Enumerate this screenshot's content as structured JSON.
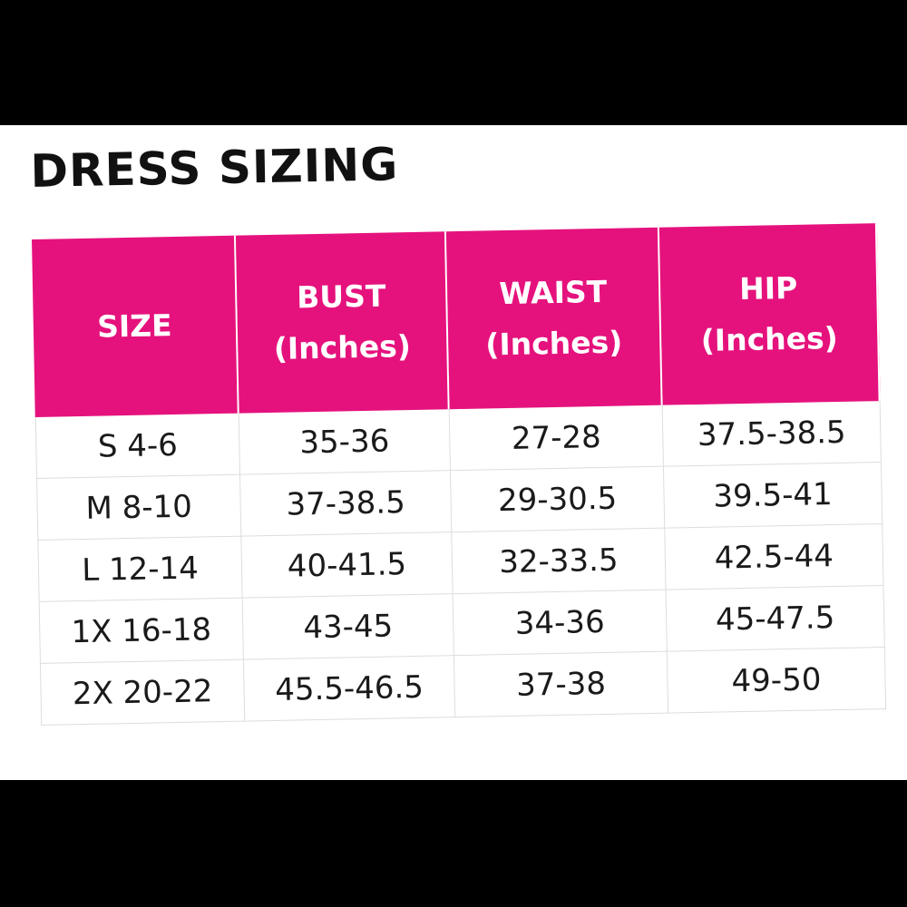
{
  "title": "DRESS SIZING",
  "table": {
    "header": [
      [
        "SIZE"
      ],
      [
        "BUST",
        "(Inches)"
      ],
      [
        "WAIST",
        "(Inches)"
      ],
      [
        "HIP",
        "(Inches)"
      ]
    ],
    "rows": [
      [
        "S 4-6",
        "35-36",
        "27-28",
        "37.5-38.5"
      ],
      [
        "M 8-10",
        "37-38.5",
        "29-30.5",
        "39.5-41"
      ],
      [
        "L 12-14",
        "40-41.5",
        "32-33.5",
        "42.5-44"
      ],
      [
        "1X 16-18",
        "43-45",
        "34-36",
        "45-47.5"
      ],
      [
        "2X 20-22",
        "45.5-46.5",
        "37-38",
        "49-50"
      ]
    ]
  }
}
